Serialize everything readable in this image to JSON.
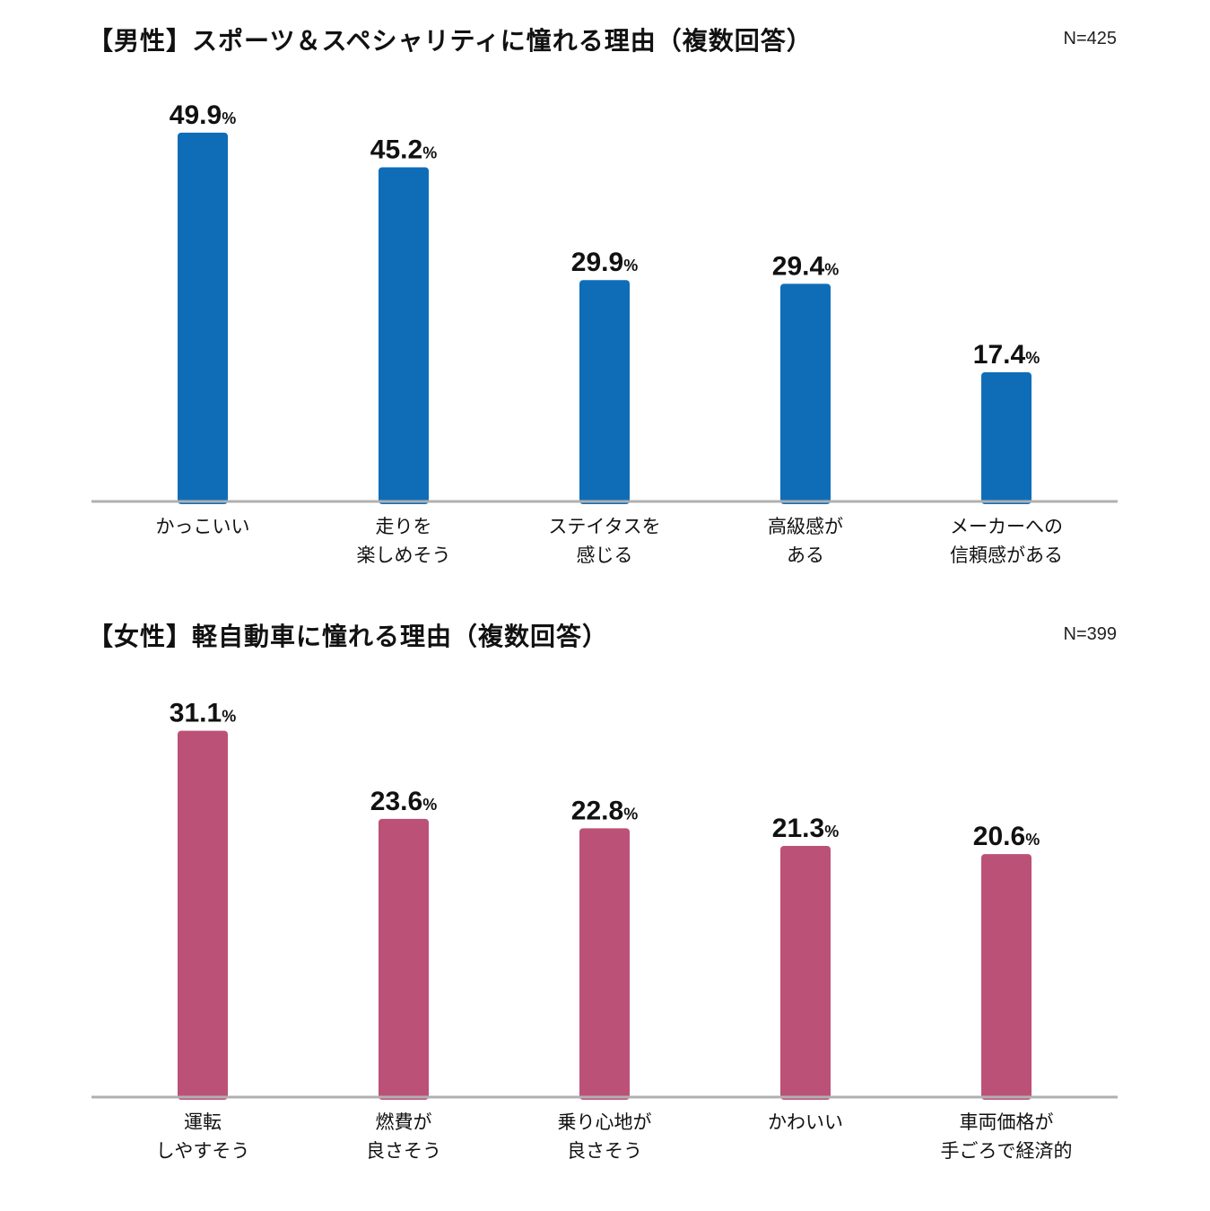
{
  "chart_data": [
    {
      "type": "bar",
      "title": "【男性】スポーツ＆スペシャリティに憧れる理由（複数回答）",
      "n_label": "N=425",
      "unit": "%",
      "color": "#0F6DB8",
      "categories": [
        [
          "かっこいい"
        ],
        [
          "走りを",
          "楽しめそう"
        ],
        [
          "ステイタスを",
          "感じる"
        ],
        [
          "高級感が",
          "ある"
        ],
        [
          "メーカーへの",
          "信頼感がある"
        ]
      ],
      "values": [
        49.9,
        45.2,
        29.9,
        29.4,
        17.4
      ],
      "ylim": [
        0,
        50
      ]
    },
    {
      "type": "bar",
      "title": "【女性】軽自動車に憧れる理由（複数回答）",
      "n_label": "N=399",
      "unit": "%",
      "color": "#BC5177",
      "categories": [
        [
          "運転",
          "しやすそう"
        ],
        [
          "燃費が",
          "良さそう"
        ],
        [
          "乗り心地が",
          "良さそう"
        ],
        [
          "かわいい"
        ],
        [
          "車両価格が",
          "手ごろで経済的"
        ]
      ],
      "values": [
        31.1,
        23.6,
        22.8,
        21.3,
        20.6
      ],
      "ylim": [
        0,
        50
      ]
    }
  ]
}
